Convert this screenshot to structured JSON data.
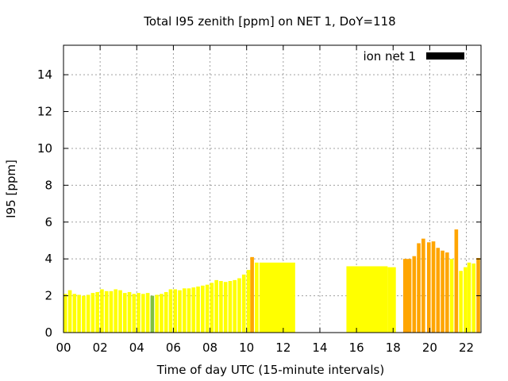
{
  "chart_data": {
    "type": "bar",
    "title": "Total I95 zenith [ppm] on NET 1, DoY=118",
    "xlabel": "Time of day UTC (15-minute intervals)",
    "ylabel": "I95 [ppm]",
    "xlim": [
      0,
      22.8
    ],
    "ylim": [
      0,
      15.6
    ],
    "x_ticks": [
      "00",
      "02",
      "04",
      "06",
      "08",
      "10",
      "12",
      "14",
      "16",
      "18",
      "20",
      "22"
    ],
    "y_ticks": [
      "0",
      "2",
      "4",
      "6",
      "8",
      "10",
      "12",
      "14"
    ],
    "grid": true,
    "legend": {
      "position": "top-right",
      "entries": [
        {
          "label": "ion net 1",
          "color": "#000000"
        }
      ]
    },
    "colors": {
      "yellow": "#ffff00",
      "green": "#80c040",
      "orange": "#ffa500"
    },
    "series": [
      {
        "name": "ion net 1",
        "bars": [
          {
            "x": 0.0,
            "w": 0.2,
            "value": 2.1,
            "color": "yellow"
          },
          {
            "x": 0.25,
            "w": 0.2,
            "value": 2.3,
            "color": "yellow"
          },
          {
            "x": 0.5,
            "w": 0.2,
            "value": 2.1,
            "color": "yellow"
          },
          {
            "x": 0.75,
            "w": 0.2,
            "value": 2.05,
            "color": "yellow"
          },
          {
            "x": 1.0,
            "w": 0.2,
            "value": 2.0,
            "color": "yellow"
          },
          {
            "x": 1.25,
            "w": 0.2,
            "value": 2.05,
            "color": "yellow"
          },
          {
            "x": 1.5,
            "w": 0.2,
            "value": 2.15,
            "color": "yellow"
          },
          {
            "x": 1.75,
            "w": 0.2,
            "value": 2.2,
            "color": "yellow"
          },
          {
            "x": 2.0,
            "w": 0.2,
            "value": 2.35,
            "color": "yellow"
          },
          {
            "x": 2.25,
            "w": 0.2,
            "value": 2.25,
            "color": "yellow"
          },
          {
            "x": 2.5,
            "w": 0.2,
            "value": 2.25,
            "color": "yellow"
          },
          {
            "x": 2.75,
            "w": 0.2,
            "value": 2.35,
            "color": "yellow"
          },
          {
            "x": 3.0,
            "w": 0.2,
            "value": 2.3,
            "color": "yellow"
          },
          {
            "x": 3.25,
            "w": 0.2,
            "value": 2.15,
            "color": "yellow"
          },
          {
            "x": 3.5,
            "w": 0.2,
            "value": 2.2,
            "color": "yellow"
          },
          {
            "x": 3.75,
            "w": 0.2,
            "value": 2.1,
            "color": "yellow"
          },
          {
            "x": 4.0,
            "w": 0.2,
            "value": 2.15,
            "color": "yellow"
          },
          {
            "x": 4.25,
            "w": 0.2,
            "value": 2.1,
            "color": "yellow"
          },
          {
            "x": 4.5,
            "w": 0.2,
            "value": 2.15,
            "color": "yellow"
          },
          {
            "x": 4.75,
            "w": 0.2,
            "value": 2.0,
            "color": "green"
          },
          {
            "x": 5.0,
            "w": 0.2,
            "value": 2.05,
            "color": "yellow"
          },
          {
            "x": 5.25,
            "w": 0.2,
            "value": 2.1,
            "color": "yellow"
          },
          {
            "x": 5.5,
            "w": 0.2,
            "value": 2.2,
            "color": "yellow"
          },
          {
            "x": 5.75,
            "w": 0.2,
            "value": 2.35,
            "color": "yellow"
          },
          {
            "x": 6.0,
            "w": 0.2,
            "value": 2.35,
            "color": "yellow"
          },
          {
            "x": 6.25,
            "w": 0.2,
            "value": 2.3,
            "color": "yellow"
          },
          {
            "x": 6.5,
            "w": 0.2,
            "value": 2.4,
            "color": "yellow"
          },
          {
            "x": 6.75,
            "w": 0.2,
            "value": 2.4,
            "color": "yellow"
          },
          {
            "x": 7.0,
            "w": 0.2,
            "value": 2.45,
            "color": "yellow"
          },
          {
            "x": 7.25,
            "w": 0.2,
            "value": 2.5,
            "color": "yellow"
          },
          {
            "x": 7.5,
            "w": 0.2,
            "value": 2.55,
            "color": "yellow"
          },
          {
            "x": 7.75,
            "w": 0.2,
            "value": 2.6,
            "color": "yellow"
          },
          {
            "x": 8.0,
            "w": 0.2,
            "value": 2.7,
            "color": "yellow"
          },
          {
            "x": 8.25,
            "w": 0.2,
            "value": 2.85,
            "color": "yellow"
          },
          {
            "x": 8.5,
            "w": 0.2,
            "value": 2.8,
            "color": "yellow"
          },
          {
            "x": 8.75,
            "w": 0.2,
            "value": 2.75,
            "color": "yellow"
          },
          {
            "x": 9.0,
            "w": 0.2,
            "value": 2.8,
            "color": "yellow"
          },
          {
            "x": 9.25,
            "w": 0.2,
            "value": 2.85,
            "color": "yellow"
          },
          {
            "x": 9.5,
            "w": 0.2,
            "value": 2.95,
            "color": "yellow"
          },
          {
            "x": 9.75,
            "w": 0.2,
            "value": 3.15,
            "color": "yellow"
          },
          {
            "x": 10.0,
            "w": 0.2,
            "value": 3.4,
            "color": "yellow"
          },
          {
            "x": 10.2,
            "w": 0.2,
            "value": 4.1,
            "color": "orange"
          },
          {
            "x": 10.45,
            "w": 0.2,
            "value": 3.8,
            "color": "yellow"
          },
          {
            "x": 10.7,
            "w": 1.95,
            "value": 3.8,
            "color": "yellow"
          },
          {
            "x": 15.45,
            "w": 2.25,
            "value": 3.6,
            "color": "yellow"
          },
          {
            "x": 17.7,
            "w": 0.45,
            "value": 3.55,
            "color": "yellow"
          },
          {
            "x": 18.55,
            "w": 0.45,
            "value": 4.0,
            "color": "orange"
          },
          {
            "x": 19.05,
            "w": 0.2,
            "value": 4.15,
            "color": "orange"
          },
          {
            "x": 19.3,
            "w": 0.2,
            "value": 4.85,
            "color": "orange"
          },
          {
            "x": 19.55,
            "w": 0.2,
            "value": 5.1,
            "color": "orange"
          },
          {
            "x": 19.85,
            "w": 0.2,
            "value": 4.9,
            "color": "orange"
          },
          {
            "x": 20.1,
            "w": 0.2,
            "value": 4.95,
            "color": "orange"
          },
          {
            "x": 20.35,
            "w": 0.2,
            "value": 4.6,
            "color": "orange"
          },
          {
            "x": 20.6,
            "w": 0.2,
            "value": 4.45,
            "color": "orange"
          },
          {
            "x": 20.85,
            "w": 0.2,
            "value": 4.35,
            "color": "orange"
          },
          {
            "x": 21.1,
            "w": 0.2,
            "value": 4.0,
            "color": "yellow"
          },
          {
            "x": 21.35,
            "w": 0.2,
            "value": 5.6,
            "color": "orange"
          },
          {
            "x": 21.6,
            "w": 0.2,
            "value": 3.35,
            "color": "yellow"
          },
          {
            "x": 21.85,
            "w": 0.2,
            "value": 3.55,
            "color": "yellow"
          },
          {
            "x": 22.05,
            "w": 0.2,
            "value": 3.8,
            "color": "yellow"
          },
          {
            "x": 22.3,
            "w": 0.2,
            "value": 3.75,
            "color": "yellow"
          },
          {
            "x": 22.55,
            "w": 0.2,
            "value": 4.05,
            "color": "orange"
          }
        ]
      }
    ]
  }
}
